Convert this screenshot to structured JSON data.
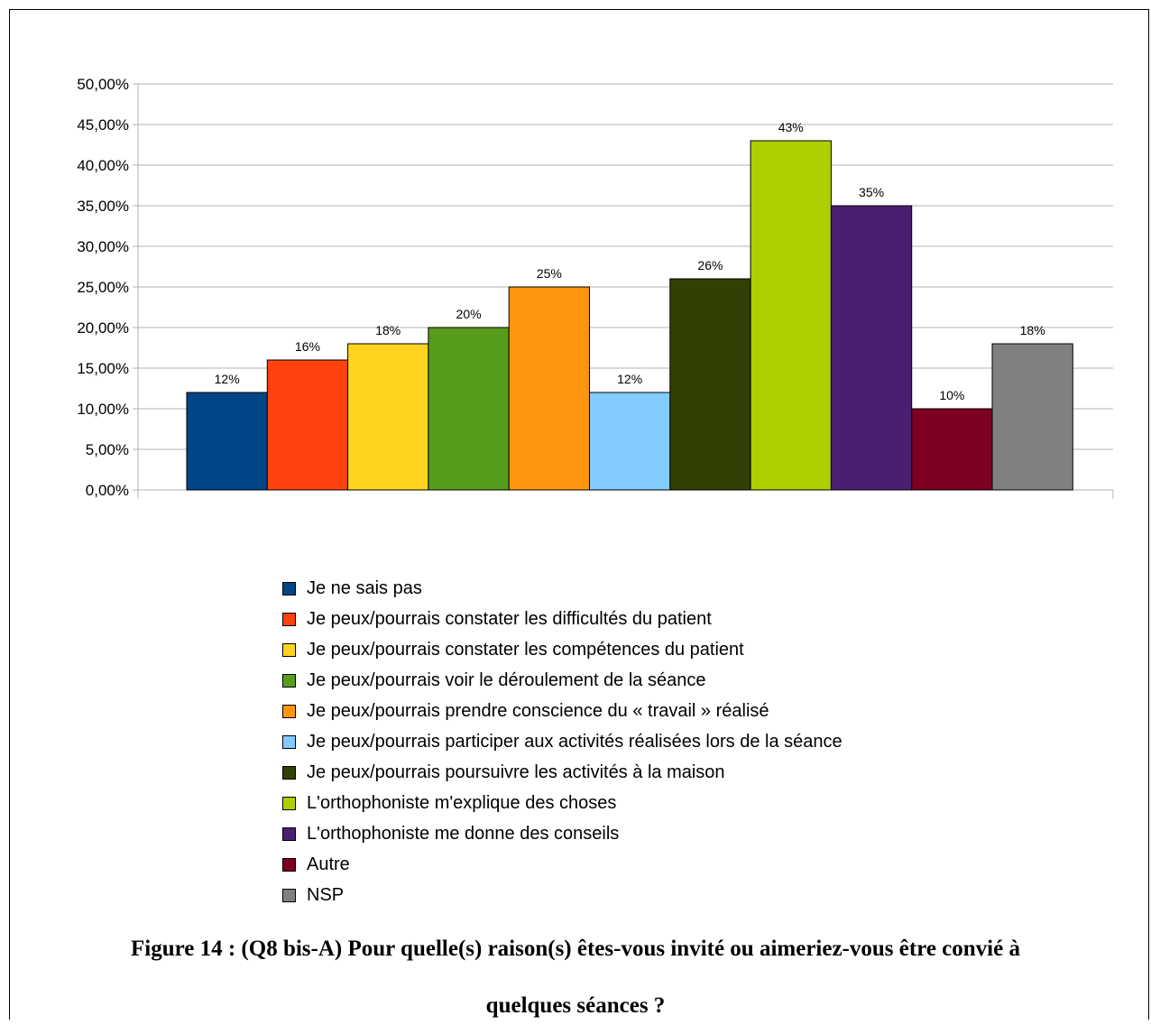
{
  "chart_data": {
    "type": "bar",
    "categories": [
      "Je ne sais pas",
      "Je peux/pourrais constater les difficultés du patient",
      "Je peux/pourrais constater les compétences du patient",
      "Je peux/pourrais voir le déroulement de la séance",
      "Je peux/pourrais prendre conscience du « travail » réalisé",
      "Je peux/pourrais participer aux activités réalisées lors de la séance",
      "Je peux/pourrais poursuivre les activités à la maison",
      "L'orthophoniste m'explique des choses",
      "L'orthophoniste me donne des conseils",
      "Autre",
      "NSP"
    ],
    "values": [
      12,
      16,
      18,
      20,
      25,
      12,
      26,
      43,
      35,
      10,
      18
    ],
    "data_labels": [
      "12%",
      "16%",
      "18%",
      "20%",
      "25%",
      "12%",
      "26%",
      "43%",
      "35%",
      "10%",
      "18%"
    ],
    "colors": [
      "#004586",
      "#ff420e",
      "#ffd320",
      "#579d1c",
      "#ff950e",
      "#83caff",
      "#314004",
      "#aecf00",
      "#4b1f6f",
      "#7e0021",
      "#808080"
    ],
    "ylim": [
      0,
      50
    ],
    "yticks": [
      "0,00%",
      "5,00%",
      "10,00%",
      "15,00%",
      "20,00%",
      "25,00%",
      "30,00%",
      "35,00%",
      "40,00%",
      "45,00%",
      "50,00%"
    ],
    "grid": true,
    "legend_position": "bottom"
  },
  "caption": {
    "line1": "Figure 14 : (Q8 bis-A) Pour quelle(s) raison(s) êtes-vous invité ou aimeriez-vous être convié à",
    "line2": "quelques séances ?"
  }
}
